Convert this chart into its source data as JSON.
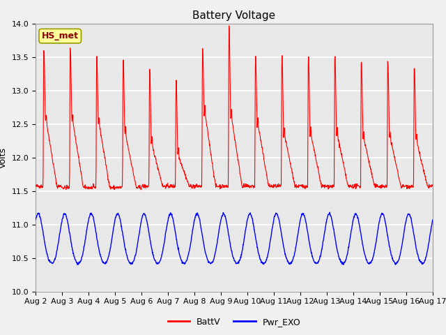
{
  "title": "Battery Voltage",
  "ylabel": "Volts",
  "ylim": [
    10.0,
    14.0
  ],
  "yticks": [
    10.0,
    10.5,
    11.0,
    11.5,
    12.0,
    12.5,
    13.0,
    13.5,
    14.0
  ],
  "xlabels": [
    "Aug 2",
    "Aug 3",
    "Aug 4",
    "Aug 5",
    "Aug 6",
    "Aug 7",
    "Aug 8",
    "Aug 9",
    "Aug 10",
    "Aug 11",
    "Aug 12",
    "Aug 13",
    "Aug 14",
    "Aug 15",
    "Aug 16",
    "Aug 17"
  ],
  "battv_color": "#ff0000",
  "pwr_color": "#0000ff",
  "bg_color": "#e8e8e8",
  "grid_color": "#ffffff",
  "annotation_text": "HS_met",
  "annotation_bg": "#ffff99",
  "annotation_border": "#999900",
  "title_fontsize": 11,
  "axis_fontsize": 9,
  "tick_fontsize": 8,
  "legend_fontsize": 9,
  "peak_heights": [
    13.6,
    13.6,
    13.5,
    13.45,
    13.3,
    13.15,
    13.6,
    13.95,
    13.5,
    13.5,
    13.5,
    13.5,
    13.4,
    13.4,
    13.35
  ],
  "notch_values": [
    12.5,
    12.5,
    12.45,
    12.3,
    12.15,
    12.0,
    12.6,
    12.55,
    12.45,
    12.3,
    12.3,
    12.3,
    12.25,
    12.25,
    12.2
  ],
  "base_values": [
    11.57,
    11.55,
    11.55,
    11.55,
    11.57,
    11.57,
    11.57,
    11.57,
    11.57,
    11.57,
    11.57,
    11.57,
    11.57,
    11.57,
    11.57
  ],
  "n_days": 15
}
